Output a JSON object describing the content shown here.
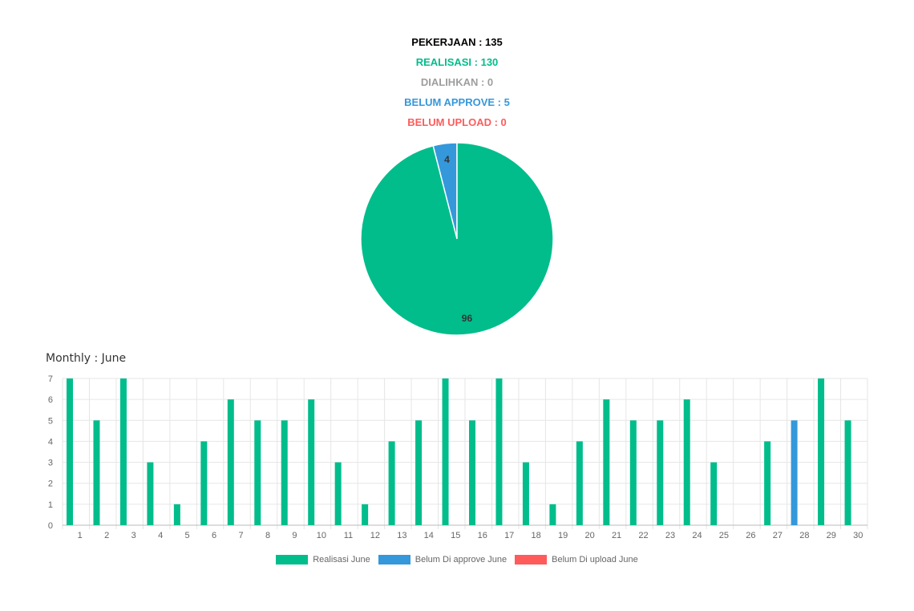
{
  "summary": {
    "pekerjaan": "PEKERJAAN : 135",
    "realisasi": "REALISASI : 130",
    "dialihkan": "DIALIHKAN : 0",
    "belum_approve": "BELUM APPROVE : 5",
    "belum_upload": "BELUM UPLOAD : 0"
  },
  "colors": {
    "realisasi": "#00bd8b",
    "belum_approve": "#3498db",
    "belum_upload": "#ff5b5b",
    "dialihkan": "#9e9e9e",
    "pekerjaan": "#000000"
  },
  "section_title": "Monthly : June",
  "chart_data": [
    {
      "type": "pie",
      "slices": [
        {
          "label": "Belum Di approve",
          "value": 4,
          "color": "#3498db"
        },
        {
          "label": "Realisasi",
          "value": 96,
          "color": "#00bd8b"
        }
      ]
    },
    {
      "type": "bar",
      "categories": [
        "1",
        "2",
        "3",
        "4",
        "5",
        "6",
        "7",
        "8",
        "9",
        "10",
        "11",
        "12",
        "13",
        "14",
        "15",
        "16",
        "17",
        "18",
        "19",
        "20",
        "21",
        "22",
        "23",
        "24",
        "25",
        "26",
        "27",
        "28",
        "29",
        "30"
      ],
      "series": [
        {
          "name": "Realisasi June",
          "color": "#00bd8b",
          "values": [
            7,
            5,
            7,
            3,
            1,
            4,
            6,
            5,
            5,
            6,
            3,
            1,
            4,
            5,
            7,
            5,
            7,
            3,
            1,
            4,
            6,
            5,
            5,
            6,
            3,
            0,
            4,
            0,
            7,
            5
          ]
        },
        {
          "name": "Belum Di approve June",
          "color": "#3498db",
          "values": [
            0,
            0,
            0,
            0,
            0,
            0,
            0,
            0,
            0,
            0,
            0,
            0,
            0,
            0,
            0,
            0,
            0,
            0,
            0,
            0,
            0,
            0,
            0,
            0,
            0,
            0,
            0,
            5,
            0,
            0
          ]
        },
        {
          "name": "Belum Di upload June",
          "color": "#ff5b5b",
          "values": [
            0,
            0,
            0,
            0,
            0,
            0,
            0,
            0,
            0,
            0,
            0,
            0,
            0,
            0,
            0,
            0,
            0,
            0,
            0,
            0,
            0,
            0,
            0,
            0,
            0,
            0,
            0,
            0,
            0,
            0
          ]
        }
      ],
      "yticks": [
        0,
        1,
        2,
        3,
        4,
        5,
        6,
        7
      ],
      "ylim": [
        0,
        7
      ],
      "grid": true,
      "legend": "bottom"
    }
  ]
}
